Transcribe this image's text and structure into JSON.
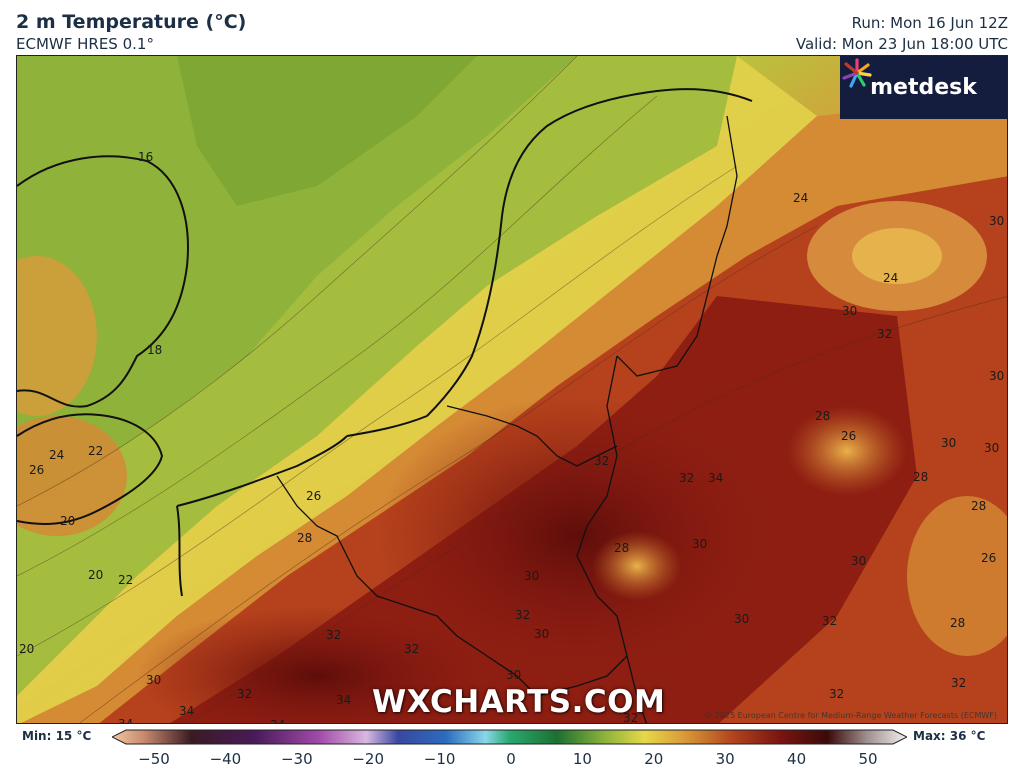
{
  "header": {
    "title": "2 m Temperature (°C)",
    "model": "ECMWF HRES 0.1°",
    "run": "Run: Mon 16 Jun 12Z",
    "valid": "Valid: Mon 23 Jun 18:00 UTC"
  },
  "logo": {
    "text": "metdesk"
  },
  "watermark": "WXCHARTS.COM",
  "copyright": "© 2025 European Centre for Medium-Range Weather Forecasts (ECMWF)",
  "colorbar": {
    "min_label": "Min: 15 °C",
    "max_label": "Max: 36 °C",
    "ticks": [
      "−50",
      "−40",
      "−30",
      "−20",
      "−10",
      "0",
      "10",
      "20",
      "30",
      "40",
      "50"
    ],
    "range": [
      -50,
      50
    ],
    "min_value": 15,
    "max_value": 36
  },
  "isotherm_labels": [
    "16",
    "18",
    "22",
    "24",
    "26",
    "20",
    "20",
    "22",
    "20",
    "26",
    "28",
    "24",
    "30",
    "30",
    "24",
    "30",
    "32",
    "30",
    "28",
    "26",
    "30",
    "28",
    "28",
    "26",
    "32",
    "32",
    "34",
    "30",
    "28",
    "30",
    "30",
    "32",
    "30",
    "30",
    "32",
    "28",
    "32",
    "32",
    "30",
    "32",
    "34",
    "34",
    "32",
    "32",
    "34",
    "34",
    "30",
    "32"
  ]
}
